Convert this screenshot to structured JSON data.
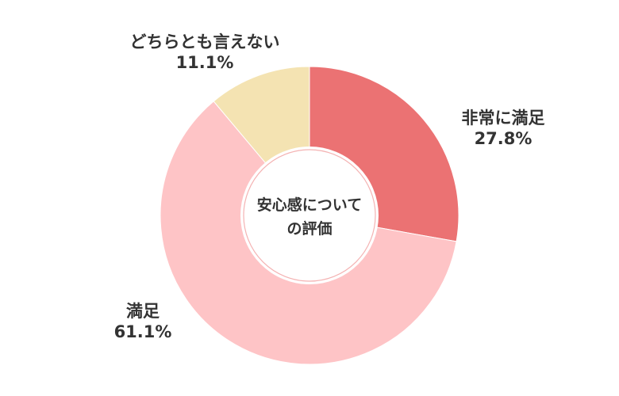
{
  "chart_data": {
    "type": "pie",
    "center_label_lines": [
      "安心感について",
      "の評価"
    ],
    "slices": [
      {
        "label": "非常に満足",
        "value": 27.8,
        "value_text": "27.8%",
        "color": "#eb7273"
      },
      {
        "label": "満足",
        "value": 61.1,
        "value_text": "61.1%",
        "color": "#fec4c6"
      },
      {
        "label": "どちらとも言えない",
        "value": 11.1,
        "value_text": "11.1%",
        "color": "#f4e3b2"
      }
    ]
  }
}
